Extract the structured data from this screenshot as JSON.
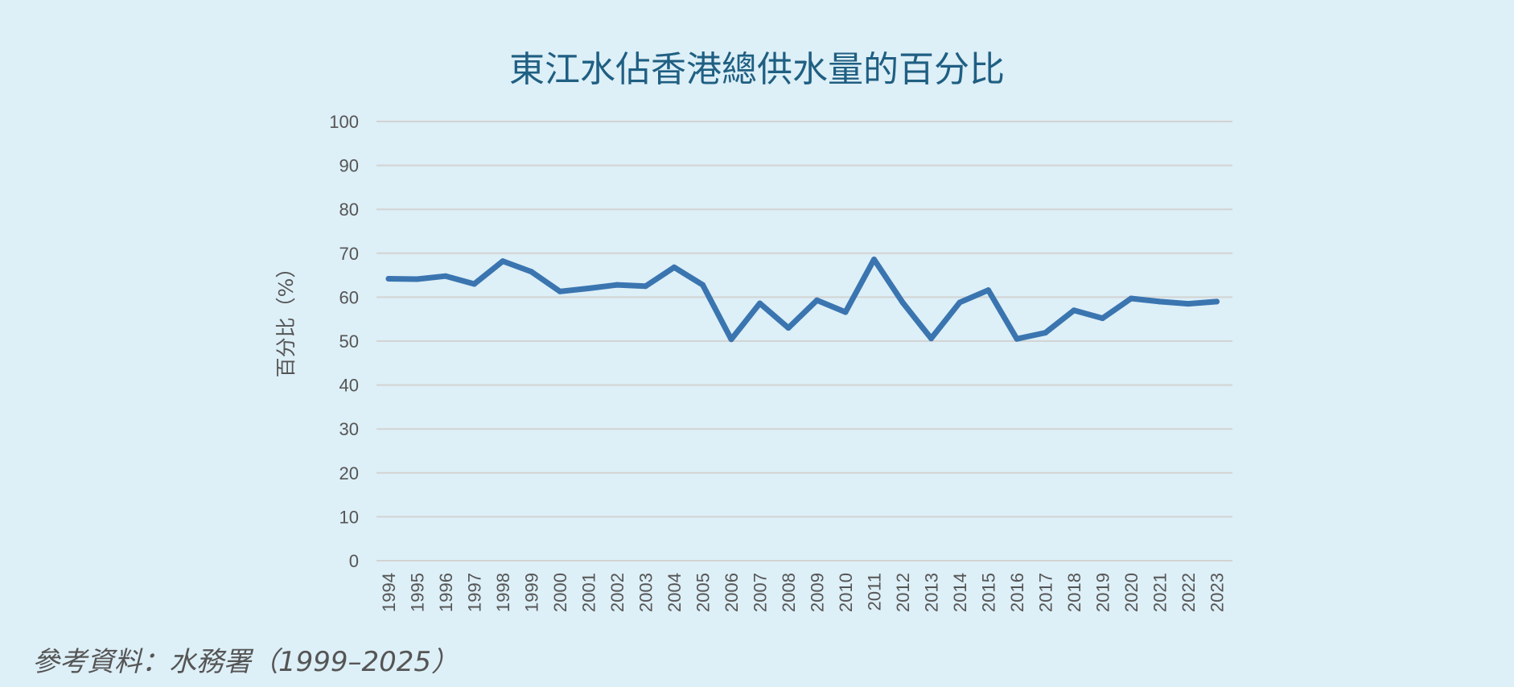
{
  "chart_data": {
    "type": "line",
    "title": "東江水佔香港總供水量的百分比",
    "xlabel": "",
    "ylabel": "百分比（%）",
    "ylim": [
      0,
      100
    ],
    "yticks": [
      "0",
      "10",
      "20",
      "30",
      "40",
      "50",
      "60",
      "70",
      "80",
      "90",
      "100"
    ],
    "grid": true,
    "categories": [
      "1994",
      "1995",
      "1996",
      "1997",
      "1998",
      "1999",
      "2000",
      "2001",
      "2002",
      "2003",
      "2004",
      "2005",
      "2006",
      "2007",
      "2008",
      "2009",
      "2010",
      "2011",
      "2012",
      "2013",
      "2014",
      "2015",
      "2016",
      "2017",
      "2018",
      "2019",
      "2020",
      "2021",
      "2022",
      "2023"
    ],
    "series": [
      {
        "color": "#3a75b0",
        "values": [
          64.2,
          64.1,
          64.8,
          63.0,
          68.2,
          65.8,
          61.3,
          62.0,
          62.8,
          62.5,
          66.8,
          62.8,
          50.4,
          58.6,
          53.0,
          59.3,
          56.6,
          68.6,
          58.8,
          50.6,
          58.8,
          61.6,
          50.5,
          51.9,
          57.0,
          55.2,
          59.7,
          59.0,
          58.5,
          59.0
        ]
      }
    ]
  },
  "source": "參考資料：水務署（1999–2025）"
}
